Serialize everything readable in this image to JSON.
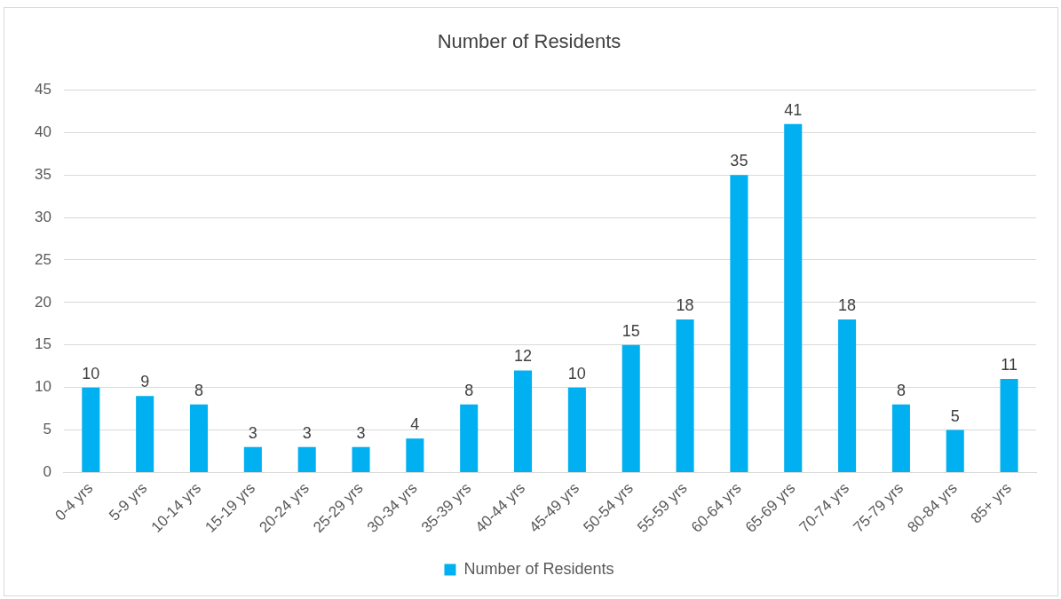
{
  "chart_data": {
    "type": "bar",
    "title": "Number of Residents",
    "categories": [
      "0-4 yrs",
      "5-9 yrs",
      "10-14 yrs",
      "15-19 yrs",
      "20-24 yrs",
      "25-29 yrs",
      "30-34 yrs",
      "35-39 yrs",
      "40-44 yrs",
      "45-49 yrs",
      "50-54 yrs",
      "55-59 yrs",
      "60-64 yrs",
      "65-69 yrs",
      "70-74 yrs",
      "75-79 yrs",
      "80-84 yrs",
      "85+ yrs"
    ],
    "series": [
      {
        "name": "Number of Residents",
        "color": "#00b0f0",
        "values": [
          10,
          9,
          8,
          3,
          3,
          3,
          4,
          8,
          12,
          10,
          15,
          18,
          35,
          41,
          18,
          8,
          5,
          11
        ]
      }
    ],
    "ylim": [
      0,
      45
    ],
    "yticks": [
      0,
      5,
      10,
      15,
      20,
      25,
      30,
      35,
      40,
      45
    ],
    "grid": "y",
    "legend": "bottom",
    "data_labels": true
  }
}
